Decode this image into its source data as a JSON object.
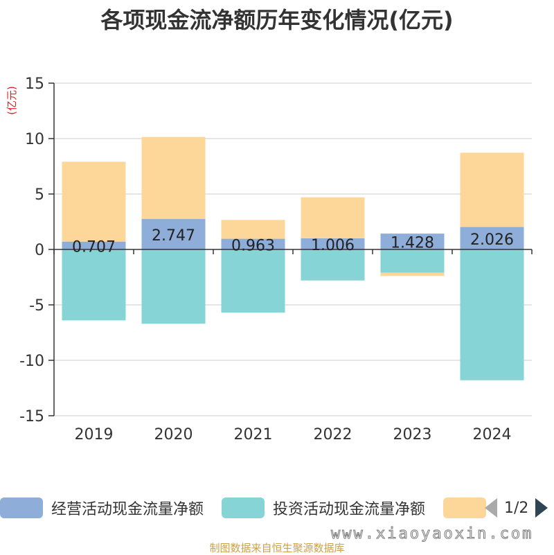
{
  "title": "各项现金流净额历年变化情况(亿元)",
  "source": "制图数据来自恒生聚源数据库",
  "watermark": "www.xiaoyaoxin.com",
  "colors": {
    "operating": "#8eadd9",
    "investing": "#86d4d6",
    "financing": "#fdd799",
    "axis_unit": "#e01e1e"
  },
  "legend": {
    "items": [
      "经营活动现金流量净额",
      "投资活动现金流量净额",
      ""
    ],
    "page": "1/2"
  },
  "chart_data": {
    "type": "bar",
    "stacked": true,
    "categories": [
      "2019",
      "2020",
      "2021",
      "2022",
      "2023",
      "2024"
    ],
    "ylabel": "(亿元)",
    "ylim": [
      -15,
      15
    ],
    "yticks": [
      15,
      10,
      5,
      0,
      -5,
      -10,
      -15
    ],
    "grid": true,
    "legend_position": "bottom",
    "series": [
      {
        "name": "经营活动现金流量净额",
        "values": [
          0.707,
          2.747,
          0.963,
          1.006,
          1.428,
          2.026
        ],
        "labels": [
          "0.707",
          "2.747",
          "0.963",
          "1.006",
          "1.428",
          "2.026"
        ]
      },
      {
        "name": "投资活动现金流量净额",
        "values": [
          -6.4,
          -6.7,
          -5.7,
          -2.8,
          -2.1,
          -11.8
        ]
      },
      {
        "name": "",
        "values": [
          7.2,
          7.4,
          1.7,
          3.7,
          -0.3,
          6.7
        ]
      }
    ]
  }
}
